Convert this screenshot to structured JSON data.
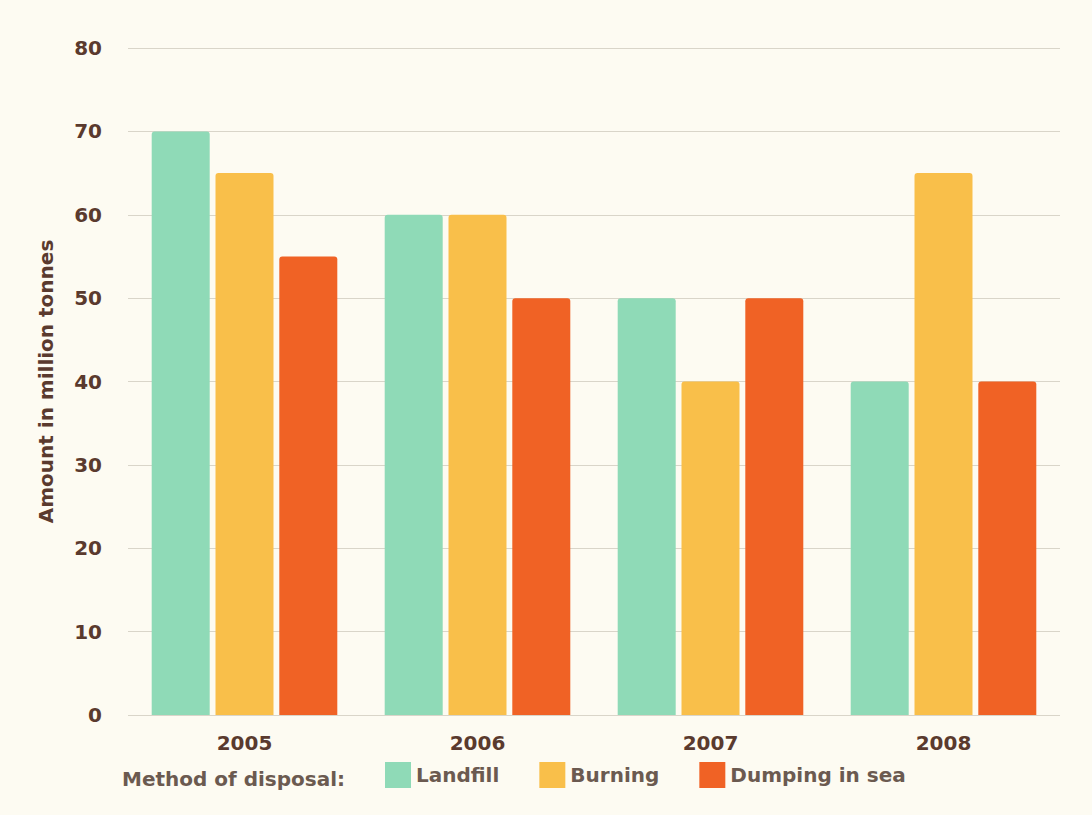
{
  "chart_data": {
    "type": "bar",
    "y_label": "Amount in million tonnes",
    "legend_title": "Method of disposal:",
    "categories": [
      "2005",
      "2006",
      "2007",
      "2008"
    ],
    "series": [
      {
        "name": "Landfill",
        "color": "#8fdab7",
        "values": [
          70,
          60,
          50,
          40
        ]
      },
      {
        "name": "Burning",
        "color": "#f9bf4a",
        "values": [
          65,
          60,
          40,
          65
        ]
      },
      {
        "name": "Dumping in sea",
        "color": "#f06225",
        "values": [
          55,
          50,
          50,
          40
        ]
      }
    ],
    "ylim": [
      0,
      80
    ],
    "yticks": [
      0,
      10,
      20,
      30,
      40,
      50,
      60,
      70,
      80
    ],
    "grid": true,
    "legend": "bottom"
  }
}
